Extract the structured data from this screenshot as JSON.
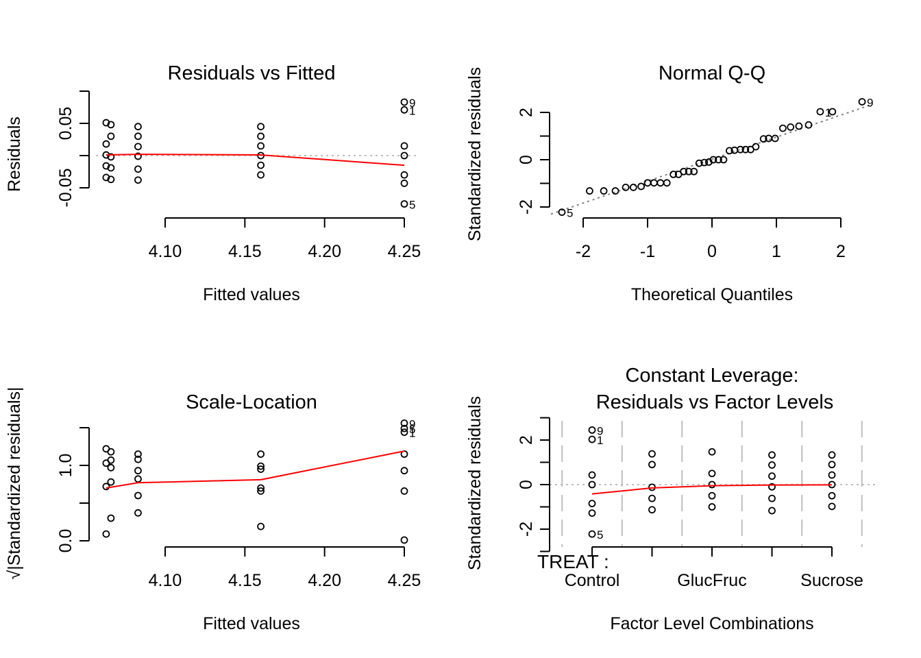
{
  "chart_data": [
    {
      "id": "residuals-vs-fitted",
      "type": "scatter",
      "title": "Residuals vs Fitted",
      "xlabel": "Fitted values",
      "ylabel": "Residuals",
      "xticks": [
        "4.10",
        "4.15",
        "4.20",
        "4.25"
      ],
      "xtick_values": [
        4.1,
        4.15,
        4.2,
        4.25
      ],
      "yticks": [
        "-0.05",
        "0.05"
      ],
      "ytick_values": [
        -0.05,
        0.0,
        0.05
      ],
      "xlim": [
        4.05,
        4.27
      ],
      "ylim": [
        -0.1,
        0.1
      ],
      "points": [
        {
          "x": 4.063,
          "y": 0.051
        },
        {
          "x": 4.066,
          "y": 0.048
        },
        {
          "x": 4.066,
          "y": 0.03
        },
        {
          "x": 4.063,
          "y": 0.018
        },
        {
          "x": 4.063,
          "y": 0.001
        },
        {
          "x": 4.066,
          "y": -0.002
        },
        {
          "x": 4.063,
          "y": -0.016
        },
        {
          "x": 4.066,
          "y": -0.019
        },
        {
          "x": 4.063,
          "y": -0.034
        },
        {
          "x": 4.066,
          "y": -0.037
        },
        {
          "x": 4.083,
          "y": 0.045
        },
        {
          "x": 4.083,
          "y": 0.03
        },
        {
          "x": 4.083,
          "y": 0.014
        },
        {
          "x": 4.083,
          "y": -0.001
        },
        {
          "x": 4.083,
          "y": -0.021
        },
        {
          "x": 4.083,
          "y": -0.038
        },
        {
          "x": 4.16,
          "y": 0.045
        },
        {
          "x": 4.16,
          "y": 0.03
        },
        {
          "x": 4.16,
          "y": 0.015
        },
        {
          "x": 4.16,
          "y": 0.0
        },
        {
          "x": 4.16,
          "y": -0.015
        },
        {
          "x": 4.16,
          "y": -0.03
        },
        {
          "x": 4.25,
          "y": 0.083,
          "label": "9"
        },
        {
          "x": 4.25,
          "y": 0.071,
          "label": "1"
        },
        {
          "x": 4.25,
          "y": 0.015
        },
        {
          "x": 4.25,
          "y": 0.0
        },
        {
          "x": 4.25,
          "y": -0.03
        },
        {
          "x": 4.25,
          "y": -0.043
        },
        {
          "x": 4.25,
          "y": -0.075,
          "label": "5"
        }
      ],
      "smooth": [
        [
          4.063,
          0.001
        ],
        [
          4.083,
          0.002
        ],
        [
          4.16,
          0.001
        ],
        [
          4.25,
          -0.015
        ]
      ],
      "reference_line": 0
    },
    {
      "id": "normal-qq",
      "type": "scatter",
      "title": "Normal Q-Q",
      "xlabel": "Theoretical Quantiles",
      "ylabel": "Standardized residuals",
      "xticks": [
        "-2",
        "-1",
        "0",
        "1",
        "2"
      ],
      "xtick_values": [
        -2,
        -1,
        0,
        1,
        2
      ],
      "yticks": [
        "-2",
        "0",
        "2"
      ],
      "ytick_values": [
        -2,
        -1,
        0,
        1,
        2
      ],
      "xlim": [
        -2.5,
        2.5
      ],
      "ylim": [
        -2.6,
        2.6
      ],
      "points": [
        {
          "x": -2.33,
          "y": -2.22,
          "label": "5"
        },
        {
          "x": -1.9,
          "y": -1.32
        },
        {
          "x": -1.68,
          "y": -1.32
        },
        {
          "x": -1.5,
          "y": -1.32
        },
        {
          "x": -1.34,
          "y": -1.17
        },
        {
          "x": -1.22,
          "y": -1.17
        },
        {
          "x": -1.1,
          "y": -1.13
        },
        {
          "x": -1.0,
          "y": -0.98
        },
        {
          "x": -0.9,
          "y": -0.98
        },
        {
          "x": -0.8,
          "y": -0.98
        },
        {
          "x": -0.7,
          "y": -0.98
        },
        {
          "x": -0.6,
          "y": -0.62
        },
        {
          "x": -0.52,
          "y": -0.62
        },
        {
          "x": -0.44,
          "y": -0.5
        },
        {
          "x": -0.36,
          "y": -0.5
        },
        {
          "x": -0.28,
          "y": -0.5
        },
        {
          "x": -0.2,
          "y": -0.15
        },
        {
          "x": -0.12,
          "y": -0.12
        },
        {
          "x": -0.05,
          "y": -0.1
        },
        {
          "x": 0.02,
          "y": 0.0
        },
        {
          "x": 0.1,
          "y": 0.0
        },
        {
          "x": 0.18,
          "y": 0.0
        },
        {
          "x": 0.27,
          "y": 0.38
        },
        {
          "x": 0.35,
          "y": 0.4
        },
        {
          "x": 0.44,
          "y": 0.43
        },
        {
          "x": 0.52,
          "y": 0.43
        },
        {
          "x": 0.6,
          "y": 0.43
        },
        {
          "x": 0.68,
          "y": 0.55
        },
        {
          "x": 0.8,
          "y": 0.88
        },
        {
          "x": 0.88,
          "y": 0.9
        },
        {
          "x": 0.98,
          "y": 0.9
        },
        {
          "x": 1.1,
          "y": 1.33
        },
        {
          "x": 1.22,
          "y": 1.38
        },
        {
          "x": 1.35,
          "y": 1.42
        },
        {
          "x": 1.5,
          "y": 1.47
        },
        {
          "x": 1.68,
          "y": 2.03,
          "label": "1"
        },
        {
          "x": 1.87,
          "y": 2.03
        },
        {
          "x": 2.33,
          "y": 2.45,
          "label": "9"
        }
      ],
      "qq_line": [
        [
          -2.5,
          -2.3
        ],
        [
          2.5,
          2.35
        ]
      ]
    },
    {
      "id": "scale-location",
      "type": "scatter",
      "title": "Scale-Location",
      "xlabel": "Fitted values",
      "ylabel": "√|Standardized residuals|",
      "xticks": [
        "4.10",
        "4.15",
        "4.20",
        "4.25"
      ],
      "xtick_values": [
        4.1,
        4.15,
        4.2,
        4.25
      ],
      "yticks": [
        "0.0",
        "1.0"
      ],
      "ytick_values": [
        0.0,
        0.5,
        1.0,
        1.5
      ],
      "xlim": [
        4.05,
        4.27
      ],
      "ylim": [
        0,
        1.5
      ],
      "points": [
        {
          "x": 4.063,
          "y": 1.22
        },
        {
          "x": 4.066,
          "y": 1.18
        },
        {
          "x": 4.066,
          "y": 1.07
        },
        {
          "x": 4.063,
          "y": 1.03
        },
        {
          "x": 4.066,
          "y": 0.97
        },
        {
          "x": 4.066,
          "y": 0.78
        },
        {
          "x": 4.063,
          "y": 0.72
        },
        {
          "x": 4.066,
          "y": 0.3
        },
        {
          "x": 4.063,
          "y": 0.09
        },
        {
          "x": 4.083,
          "y": 1.15
        },
        {
          "x": 4.083,
          "y": 1.08
        },
        {
          "x": 4.083,
          "y": 0.93
        },
        {
          "x": 4.083,
          "y": 0.82
        },
        {
          "x": 4.083,
          "y": 0.6
        },
        {
          "x": 4.083,
          "y": 0.37
        },
        {
          "x": 4.16,
          "y": 1.15
        },
        {
          "x": 4.16,
          "y": 0.99
        },
        {
          "x": 4.16,
          "y": 0.95
        },
        {
          "x": 4.16,
          "y": 0.7
        },
        {
          "x": 4.16,
          "y": 0.66
        },
        {
          "x": 4.16,
          "y": 0.19
        },
        {
          "x": 4.25,
          "y": 1.56,
          "label": "9"
        },
        {
          "x": 4.25,
          "y": 1.49,
          "label": "5"
        },
        {
          "x": 4.25,
          "y": 1.44,
          "label": "1"
        },
        {
          "x": 4.25,
          "y": 1.15
        },
        {
          "x": 4.25,
          "y": 0.93
        },
        {
          "x": 4.25,
          "y": 0.66
        },
        {
          "x": 4.25,
          "y": 0.01
        }
      ],
      "smooth": [
        [
          4.063,
          0.7
        ],
        [
          4.083,
          0.77
        ],
        [
          4.16,
          0.81
        ],
        [
          4.25,
          1.19
        ]
      ]
    },
    {
      "id": "constant-leverage",
      "type": "scatter",
      "title": "Constant Leverage:",
      "subtitle": "Residuals vs Factor Levels",
      "xlabel": "Factor Level Combinations",
      "ylabel": "Standardized residuals",
      "factor_label": "TREAT :",
      "xticks": [
        "Control",
        "GlucFruc",
        "Sucrose"
      ],
      "levels": 5,
      "yticks": [
        "-2",
        "0",
        "2"
      ],
      "ytick_values": [
        -3,
        -2,
        -1,
        0,
        1,
        2,
        3
      ],
      "ylim": [
        -3,
        3
      ],
      "points": [
        {
          "level": 1,
          "y": 2.45,
          "label": "9"
        },
        {
          "level": 1,
          "y": 2.03,
          "label": "1"
        },
        {
          "level": 1,
          "y": 0.43
        },
        {
          "level": 1,
          "y": 0.0
        },
        {
          "level": 1,
          "y": -0.85
        },
        {
          "level": 1,
          "y": -1.28
        },
        {
          "level": 1,
          "y": -2.22,
          "label": "5"
        },
        {
          "level": 2,
          "y": 1.38
        },
        {
          "level": 2,
          "y": 0.9
        },
        {
          "level": 2,
          "y": -0.12
        },
        {
          "level": 2,
          "y": -0.62
        },
        {
          "level": 2,
          "y": -1.13
        },
        {
          "level": 3,
          "y": 1.47
        },
        {
          "level": 3,
          "y": 0.5
        },
        {
          "level": 3,
          "y": 0.0
        },
        {
          "level": 3,
          "y": -0.5
        },
        {
          "level": 3,
          "y": -1.0
        },
        {
          "level": 4,
          "y": 1.33
        },
        {
          "level": 4,
          "y": 0.88
        },
        {
          "level": 4,
          "y": 0.38
        },
        {
          "level": 4,
          "y": -0.1
        },
        {
          "level": 4,
          "y": -0.62
        },
        {
          "level": 4,
          "y": -1.17
        },
        {
          "level": 5,
          "y": 1.33
        },
        {
          "level": 5,
          "y": 0.9
        },
        {
          "level": 5,
          "y": 0.43
        },
        {
          "level": 5,
          "y": 0.0
        },
        {
          "level": 5,
          "y": -0.5
        },
        {
          "level": 5,
          "y": -0.98
        }
      ],
      "smooth": [
        [
          1,
          -0.42
        ],
        [
          2,
          -0.15
        ],
        [
          3,
          -0.05
        ],
        [
          4,
          -0.02
        ],
        [
          5,
          -0.01
        ]
      ],
      "reference_line": 0
    }
  ],
  "colors": {
    "smooth": "#ff0000",
    "reference": "#bebebe",
    "qqline": "#808080",
    "points": "#000000"
  }
}
